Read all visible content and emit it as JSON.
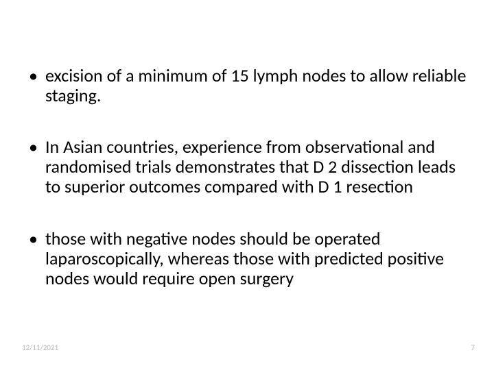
{
  "slide": {
    "bullets": [
      "excision of a minimum of 15 lymph nodes to allow reliable staging.",
      " In Asian countries, experience from observational and randomised trials demonstrates that D 2 dissection leads to superior outcomes compared with D 1 resection",
      "those with negative nodes should be operated laparoscopically, whereas those with predicted positive nodes would require open surgery"
    ],
    "footer_date": "12/11/2021",
    "page_number": "7",
    "text_color": "#000000",
    "footer_color": "#b9b9b9",
    "background_color": "#ffffff",
    "bullet_fontsize": 26,
    "footer_fontsize": 11
  }
}
